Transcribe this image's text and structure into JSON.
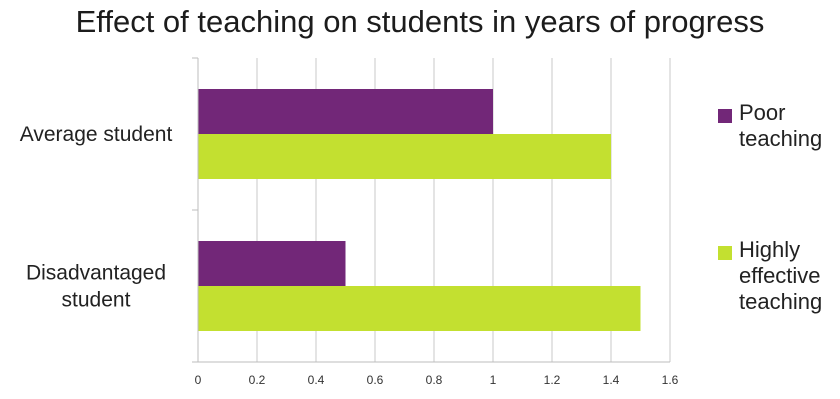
{
  "chart_data": {
    "type": "bar",
    "orientation": "horizontal",
    "title": "Effect of teaching on students in years of progress",
    "categories": [
      "Average student",
      "Disadvantaged student"
    ],
    "series": [
      {
        "name": "Poor teaching",
        "values": [
          1.0,
          0.5
        ],
        "color": "#722778"
      },
      {
        "name": "Highly effective teaching",
        "values": [
          1.4,
          1.5
        ],
        "color": "#c3e030"
      }
    ],
    "xlabel": "",
    "ylabel": "",
    "xlim": [
      0,
      1.6
    ],
    "xticks": [
      0,
      0.2,
      0.4,
      0.6,
      0.8,
      1,
      1.2,
      1.4,
      1.6
    ],
    "grid": true,
    "legend_position": "right"
  }
}
